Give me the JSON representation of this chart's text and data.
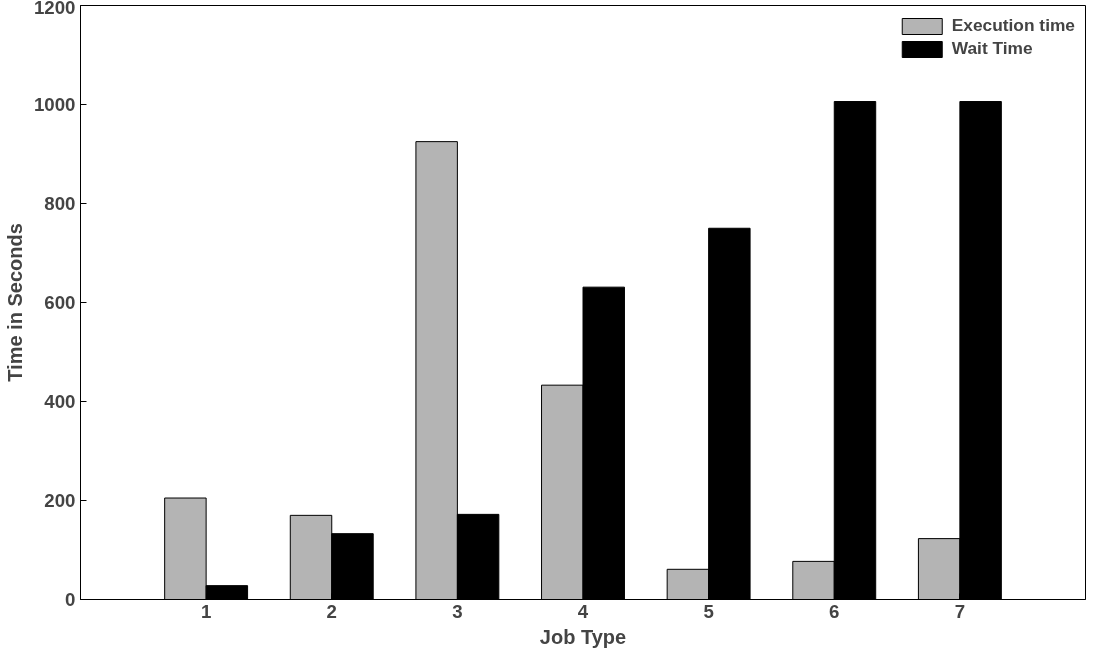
{
  "chart_data": {
    "type": "bar",
    "xlabel": "Job Type",
    "ylabel": "Time in Seconds",
    "x": [
      1,
      2,
      3,
      4,
      5,
      6,
      7
    ],
    "xlim": [
      0,
      8
    ],
    "xticks": [
      1,
      2,
      3,
      4,
      5,
      6,
      7
    ],
    "ylim": [
      0,
      1200
    ],
    "yticks": [
      0,
      200,
      400,
      600,
      800,
      1000,
      1200
    ],
    "series": [
      {
        "name": "Execution time",
        "color": "#b4b4b4",
        "values": [
          205,
          170,
          925,
          433,
          61,
          77,
          123
        ]
      },
      {
        "name": "Wait Time",
        "color": "#000000",
        "values": [
          28,
          133,
          172,
          631,
          750,
          1006,
          1006
        ]
      }
    ],
    "grid": false,
    "legend": "top right"
  }
}
